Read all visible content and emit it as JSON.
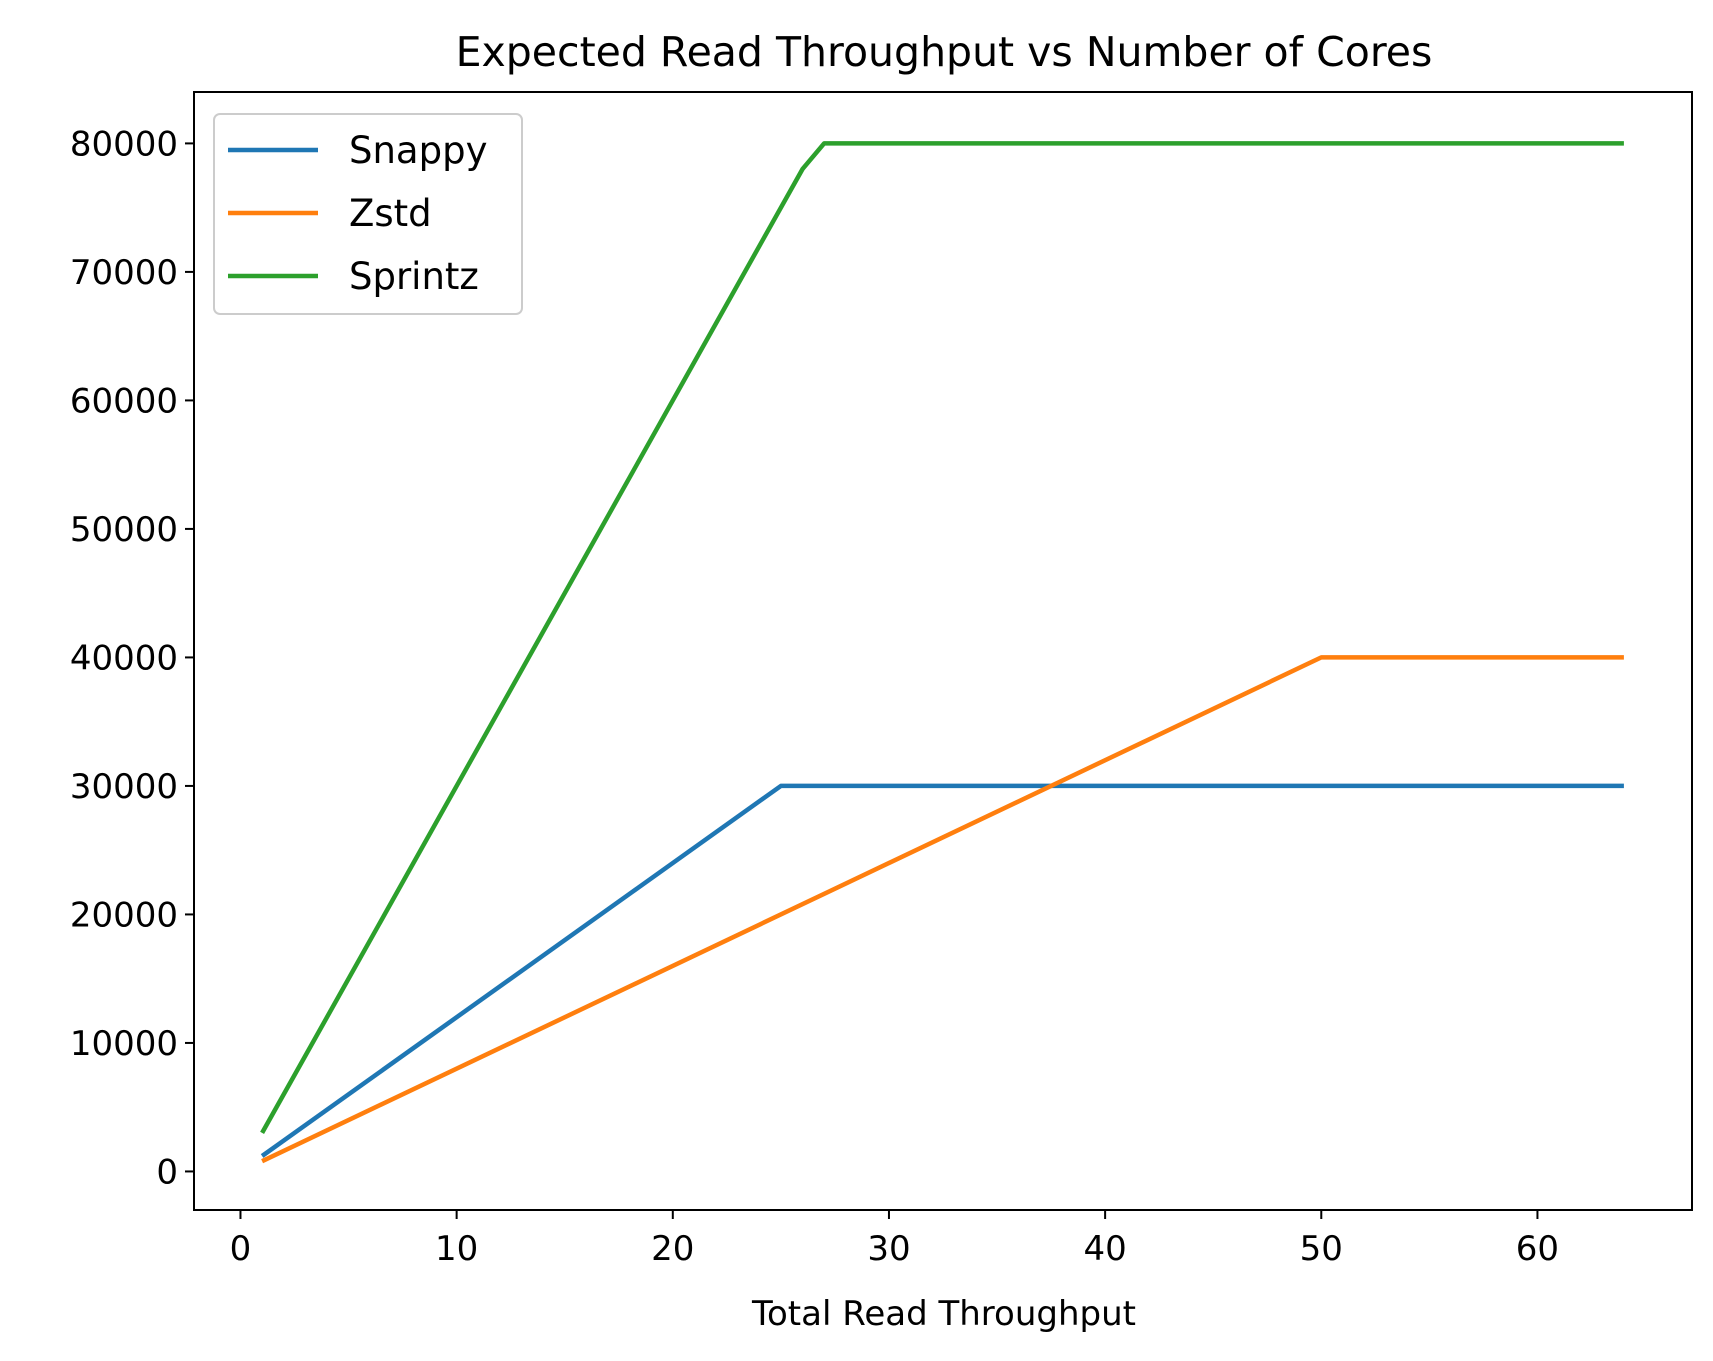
{
  "chart_data": {
    "type": "line",
    "title": "Expected Read Throughput vs Number of Cores",
    "xlabel": "Total Read Throughput",
    "ylabel": "",
    "xlim": [
      -2.15,
      67.15
    ],
    "ylim": [
      -3000,
      84000
    ],
    "xticks": [
      0,
      10,
      20,
      30,
      40,
      50,
      60
    ],
    "yticks": [
      0,
      10000,
      20000,
      30000,
      40000,
      50000,
      60000,
      70000,
      80000
    ],
    "grid": false,
    "legend_position": "top-left",
    "series": [
      {
        "name": "Snappy",
        "color": "#1f77b4",
        "x": [
          1,
          25,
          64
        ],
        "y": [
          1200,
          30000,
          30000
        ]
      },
      {
        "name": "Zstd",
        "color": "#ff7f0e",
        "x": [
          1,
          50,
          64
        ],
        "y": [
          800,
          40000,
          40000
        ]
      },
      {
        "name": "Sprintz",
        "color": "#2ca02c",
        "x": [
          1,
          26,
          27,
          64
        ],
        "y": [
          3000,
          78000,
          80000,
          80000
        ]
      }
    ]
  }
}
